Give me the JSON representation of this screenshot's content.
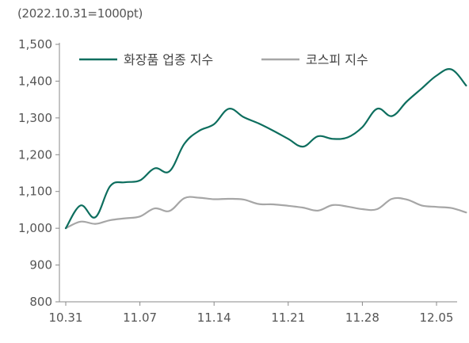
{
  "chart_data": {
    "type": "line",
    "unit_note": "(2022.10.31=1000pt)",
    "x_tick_labels": [
      "10.31",
      "11.07",
      "11.14",
      "11.21",
      "11.28",
      "12.05"
    ],
    "x_tick_index": [
      0,
      5,
      10,
      15,
      20,
      25
    ],
    "ylim": [
      800,
      1500
    ],
    "y_ticks": [
      800,
      900,
      1000,
      1100,
      1200,
      1300,
      1400,
      1500
    ],
    "y_tick_labels": [
      "800",
      "900",
      "1,000",
      "1,100",
      "1,200",
      "1,300",
      "1,400",
      "1,500"
    ],
    "grid": false,
    "legend_position": "top",
    "series": [
      {
        "name": "화장품 업종 지수",
        "color": "#0d6e5e",
        "values": [
          1000,
          1062,
          1030,
          1115,
          1125,
          1130,
          1163,
          1155,
          1230,
          1265,
          1283,
          1325,
          1302,
          1285,
          1265,
          1243,
          1222,
          1250,
          1243,
          1247,
          1275,
          1325,
          1305,
          1345,
          1380,
          1415,
          1432,
          1388
        ]
      },
      {
        "name": "코스피 지수",
        "color": "#a6a6a6",
        "values": [
          1000,
          1018,
          1012,
          1022,
          1027,
          1032,
          1054,
          1047,
          1082,
          1083,
          1079,
          1080,
          1078,
          1066,
          1065,
          1061,
          1056,
          1048,
          1063,
          1059,
          1052,
          1052,
          1080,
          1078,
          1062,
          1058,
          1055,
          1043
        ]
      }
    ]
  }
}
